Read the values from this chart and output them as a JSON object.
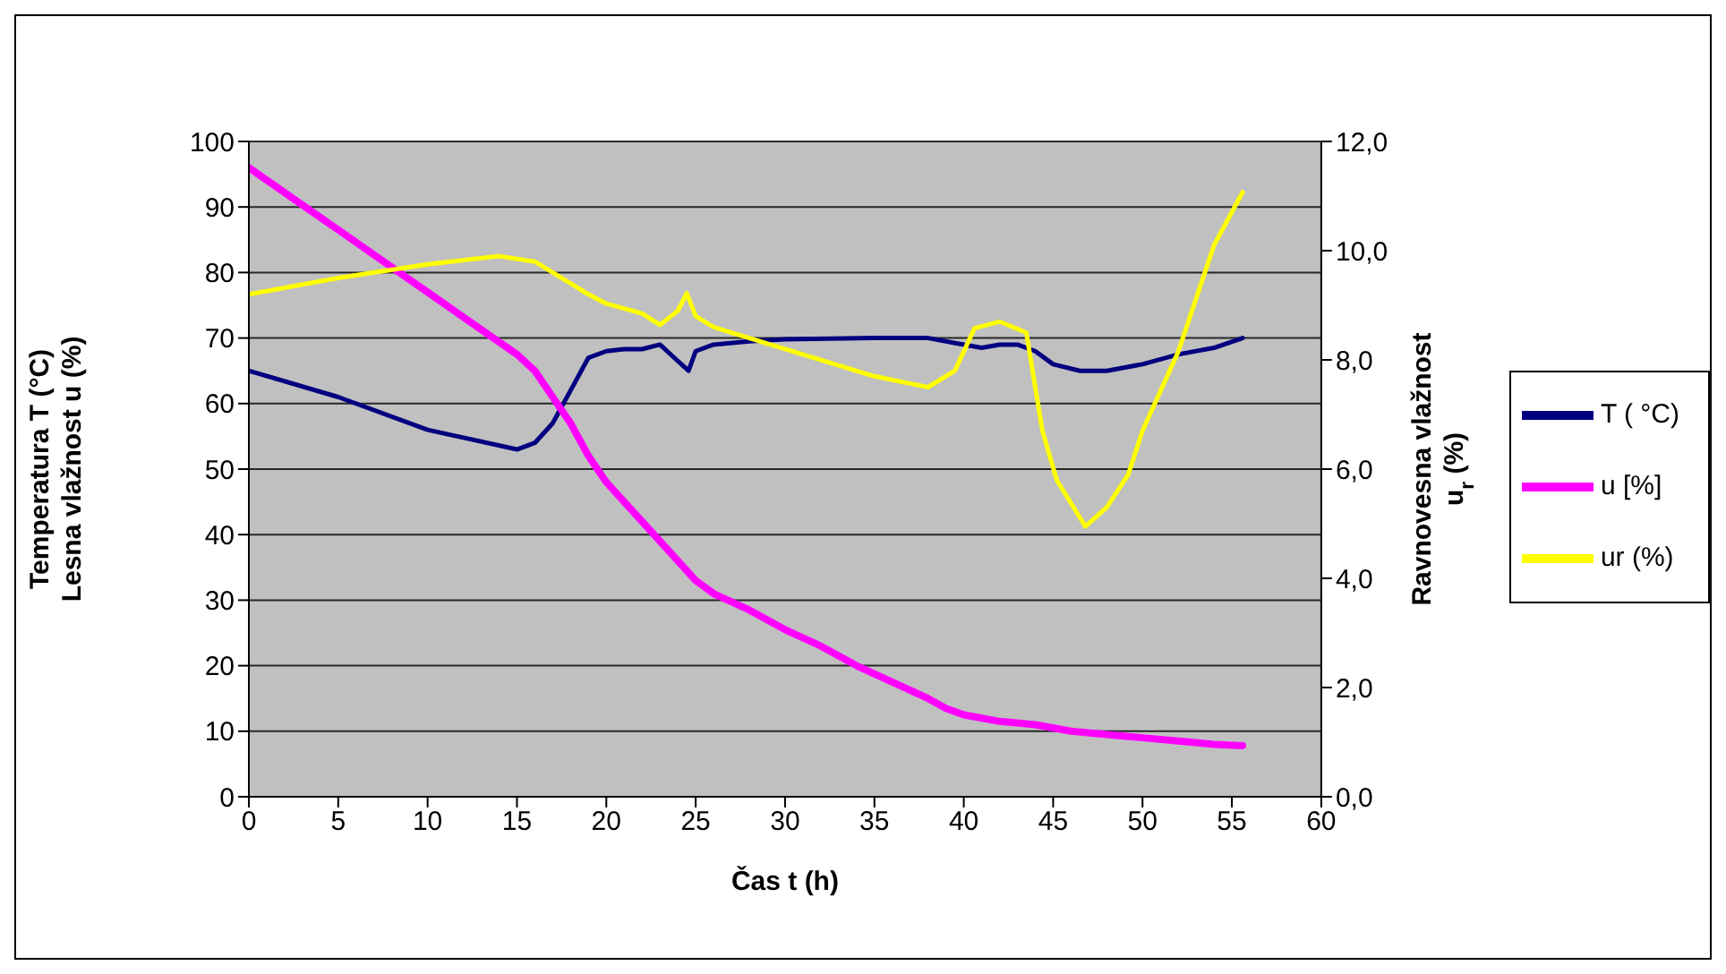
{
  "chart_data": {
    "type": "line",
    "xlabel": "Čas t (h)",
    "ylabel": "Temperatura T (°C)\nLesna vlažnost u (%)",
    "y2label": "Ravnovesna vlažnost\nu$_{r}$ (%)",
    "xlim": [
      0,
      60
    ],
    "xticks": [
      0,
      5,
      10,
      15,
      20,
      25,
      30,
      35,
      40,
      45,
      50,
      55,
      60
    ],
    "ylim": [
      0,
      100
    ],
    "yticks": [
      0,
      10,
      20,
      30,
      40,
      50,
      60,
      70,
      80,
      90,
      100
    ],
    "y2lim": [
      0,
      12
    ],
    "y2ticks": [
      {
        "value": 0,
        "label": "0,0"
      },
      {
        "value": 2,
        "label": "2,0"
      },
      {
        "value": 4,
        "label": "4,0"
      },
      {
        "value": 6,
        "label": "6,0"
      },
      {
        "value": 8,
        "label": "8,0"
      },
      {
        "value": 10,
        "label": "10,0"
      },
      {
        "value": 12,
        "label": "12,0"
      }
    ],
    "grid": "y",
    "legend": "right",
    "marker": "none",
    "line_style": "solid",
    "series": [
      {
        "name": "T ( °C)",
        "color": "#000080",
        "x": [
          0,
          5,
          10,
          15,
          16,
          17,
          18,
          19,
          20,
          21,
          22,
          23,
          24,
          24.6,
          25,
          26,
          28,
          30,
          35,
          38,
          40,
          41,
          42,
          43,
          44,
          45,
          46.5,
          48,
          50,
          52,
          54,
          55.6
        ],
        "values": [
          65,
          61,
          56,
          53,
          54,
          57,
          62,
          67,
          68,
          68.3,
          68.3,
          69,
          66.5,
          65,
          68,
          69,
          69.5,
          69.8,
          70,
          70,
          69,
          68.5,
          69,
          69,
          68,
          66,
          65,
          65,
          66,
          67.5,
          68.5,
          70
        ]
      },
      {
        "name": "u [%]",
        "color": "#ff00ff",
        "x": [
          0,
          5,
          10,
          15,
          16,
          17,
          18,
          19,
          20,
          22,
          24,
          25,
          26,
          28,
          30,
          32,
          34,
          36,
          38,
          39,
          40,
          42,
          44,
          46,
          48,
          50,
          52,
          54,
          55.6
        ],
        "values": [
          96,
          86.5,
          77,
          67.5,
          65,
          61,
          57,
          52,
          48,
          42,
          36,
          33,
          31,
          28.5,
          25.5,
          23,
          20,
          17.5,
          15,
          13.5,
          12.5,
          11.5,
          11,
          10,
          9.5,
          9,
          8.5,
          8,
          7.8
        ]
      },
      {
        "name": "ur (%)",
        "color": "#ffff00",
        "axis": "y2",
        "x": [
          0,
          5,
          10,
          14,
          16,
          17,
          19,
          20,
          22,
          23,
          24,
          24.5,
          25,
          26,
          28,
          30,
          35,
          38,
          39.5,
          40.6,
          42,
          43.5,
          44.4,
          45.2,
          46.8,
          48,
          49.2,
          50,
          52,
          54,
          55.6
        ],
        "values": [
          9.2,
          9.5,
          9.75,
          9.9,
          9.8,
          9.6,
          9.2,
          9.03,
          8.85,
          8.64,
          8.9,
          9.22,
          8.8,
          8.6,
          8.4,
          8.2,
          7.7,
          7.5,
          7.8,
          8.58,
          8.7,
          8.5,
          6.7,
          5.8,
          4.95,
          5.3,
          5.9,
          6.7,
          8.15,
          10.1,
          11.07
        ]
      }
    ]
  }
}
